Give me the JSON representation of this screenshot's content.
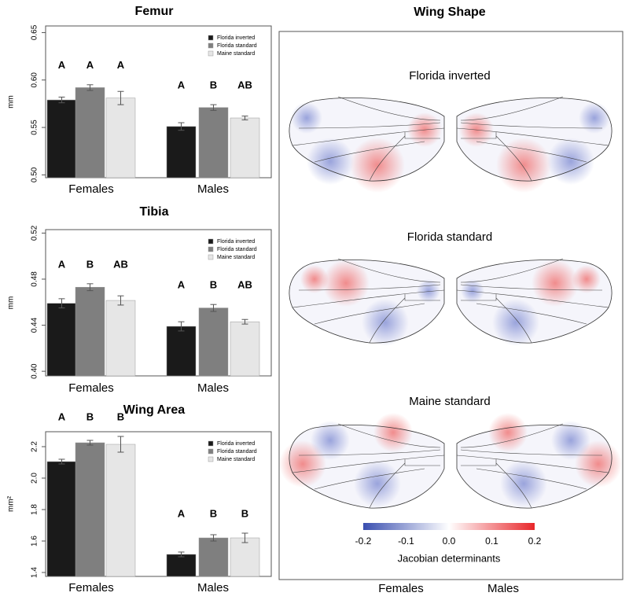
{
  "chart_data": [
    {
      "type": "bar",
      "title": "Femur",
      "ylabel": "mm",
      "categories": [
        "Females",
        "Males"
      ],
      "ylim": [
        0.497,
        0.657
      ],
      "yticks": [
        {
          "value": 0.5,
          "label": "0.50"
        },
        0.55,
        {
          "value": 0.6,
          "label": "0.60"
        },
        0.65
      ],
      "legend": "top-right",
      "series": [
        {
          "name": "Florida inverted",
          "color": "#1a1a1a",
          "values": [
            0.579,
            0.551
          ],
          "errors": [
            0.003,
            0.004
          ],
          "group_labels": [
            "A",
            "A"
          ]
        },
        {
          "name": "Florida standard",
          "color": "#7f7f7f",
          "values": [
            0.592,
            0.571
          ],
          "errors": [
            0.003,
            0.003
          ],
          "group_labels": [
            "A",
            "B"
          ]
        },
        {
          "name": "Maine standard",
          "color": "#e6e6e6",
          "values": [
            0.581,
            0.56
          ],
          "errors": [
            0.007,
            0.002
          ],
          "group_labels": [
            "A",
            "AB"
          ]
        }
      ]
    },
    {
      "type": "bar",
      "title": "Tibia",
      "ylabel": "mm",
      "categories": [
        "Females",
        "Males"
      ],
      "ylim": [
        0.396,
        0.523
      ],
      "yticks": [
        {
          "value": 0.4,
          "label": "0.40"
        },
        0.44,
        0.48,
        0.52
      ],
      "legend": "top-right",
      "series": [
        {
          "name": "Florida inverted",
          "color": "#1a1a1a",
          "values": [
            0.459,
            0.439
          ],
          "errors": [
            0.004,
            0.004
          ],
          "group_labels": [
            "A",
            "A"
          ]
        },
        {
          "name": "Florida standard",
          "color": "#7f7f7f",
          "values": [
            0.473,
            0.455
          ],
          "errors": [
            0.003,
            0.003
          ],
          "group_labels": [
            "B",
            "B"
          ]
        },
        {
          "name": "Maine standard",
          "color": "#e6e6e6",
          "values": [
            0.4615,
            0.443
          ],
          "errors": [
            0.004,
            0.002
          ],
          "group_labels": [
            "AB",
            "AB"
          ]
        }
      ]
    },
    {
      "type": "bar",
      "title": "Wing Area",
      "ylabel": "mm²",
      "categories": [
        "Females",
        "Males"
      ],
      "ylim": [
        1.375,
        2.295
      ],
      "yticks": [
        1.4,
        1.6,
        1.8,
        {
          "value": 2.0,
          "label": "2.0"
        },
        2.2
      ],
      "legend": "top-right",
      "series": [
        {
          "name": "Florida inverted",
          "color": "#1a1a1a",
          "values": [
            2.105,
            1.515
          ],
          "errors": [
            0.015,
            0.015
          ],
          "group_labels": [
            "A",
            "A"
          ]
        },
        {
          "name": "Florida standard",
          "color": "#7f7f7f",
          "values": [
            2.225,
            1.62
          ],
          "errors": [
            0.015,
            0.02
          ],
          "group_labels": [
            "B",
            "B"
          ]
        },
        {
          "name": "Maine standard",
          "color": "#e6e6e6",
          "values": [
            2.215,
            1.62
          ],
          "errors": [
            0.05,
            0.03
          ],
          "group_labels": [
            "B",
            "B"
          ]
        }
      ]
    }
  ],
  "wing_shape": {
    "title": "Wing Shape",
    "rows": [
      "Florida inverted",
      "Florida standard",
      "Maine standard"
    ],
    "columns": [
      "Females",
      "Males"
    ],
    "colorbar": {
      "label": "Jacobian determinants",
      "lim": [
        -0.2,
        0.2
      ],
      "ticks": [
        -0.2,
        -0.1,
        {
          "value": 0,
          "label": "0.0"
        },
        0.1,
        0.2
      ],
      "colors": [
        "#3a4fb0",
        "#ffffff",
        "#e8262a"
      ]
    }
  }
}
